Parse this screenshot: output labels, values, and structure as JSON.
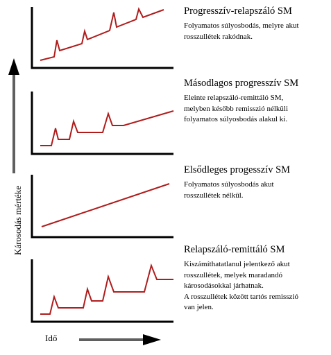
{
  "axes": {
    "y_label": "Károsodás mértéke",
    "x_label": "Idő"
  },
  "colors": {
    "curve": "#b01c1c",
    "axis": "#000000",
    "arrow": "#5f5f5f"
  },
  "panels": [
    {
      "title": "Progresszív-relapszáló SM",
      "description": "Folyamatos súlyosbodás, melyre akut\nrosszullétek rakódnak."
    },
    {
      "title": "Másodlagos progresszív SM",
      "description": "Eleinte relapszáló-remittáló SM,\nmelyben később remisszió nélküli\nfolyamatos súlyosbodás alakul ki."
    },
    {
      "title": "Elsődleges progesszív SM",
      "description": "Folyamatos súlyosbodás akut\nrosszullétek nélkül."
    },
    {
      "title": "Relapszáló-remittáló SM",
      "description": "Kiszámíthatatlanul jelentkező akut\nrosszullétek, melyek maradandó\nkárosodásokkal járhatnak.\nA rosszullétek között tartós remisszió\nvan jelen."
    }
  ]
}
